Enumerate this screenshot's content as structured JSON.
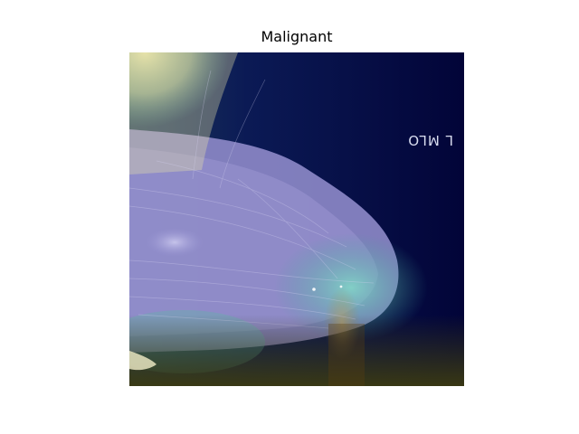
{
  "figure": {
    "title": "Malignant"
  },
  "image": {
    "view_marker": "L MLO",
    "colors": {
      "background": "#05063a",
      "tissue": "#8c86c8",
      "heat_yellow": "#e8e69a",
      "heat_teal": "#5ec8b4",
      "heat_olive": "#4e4a1a"
    }
  }
}
